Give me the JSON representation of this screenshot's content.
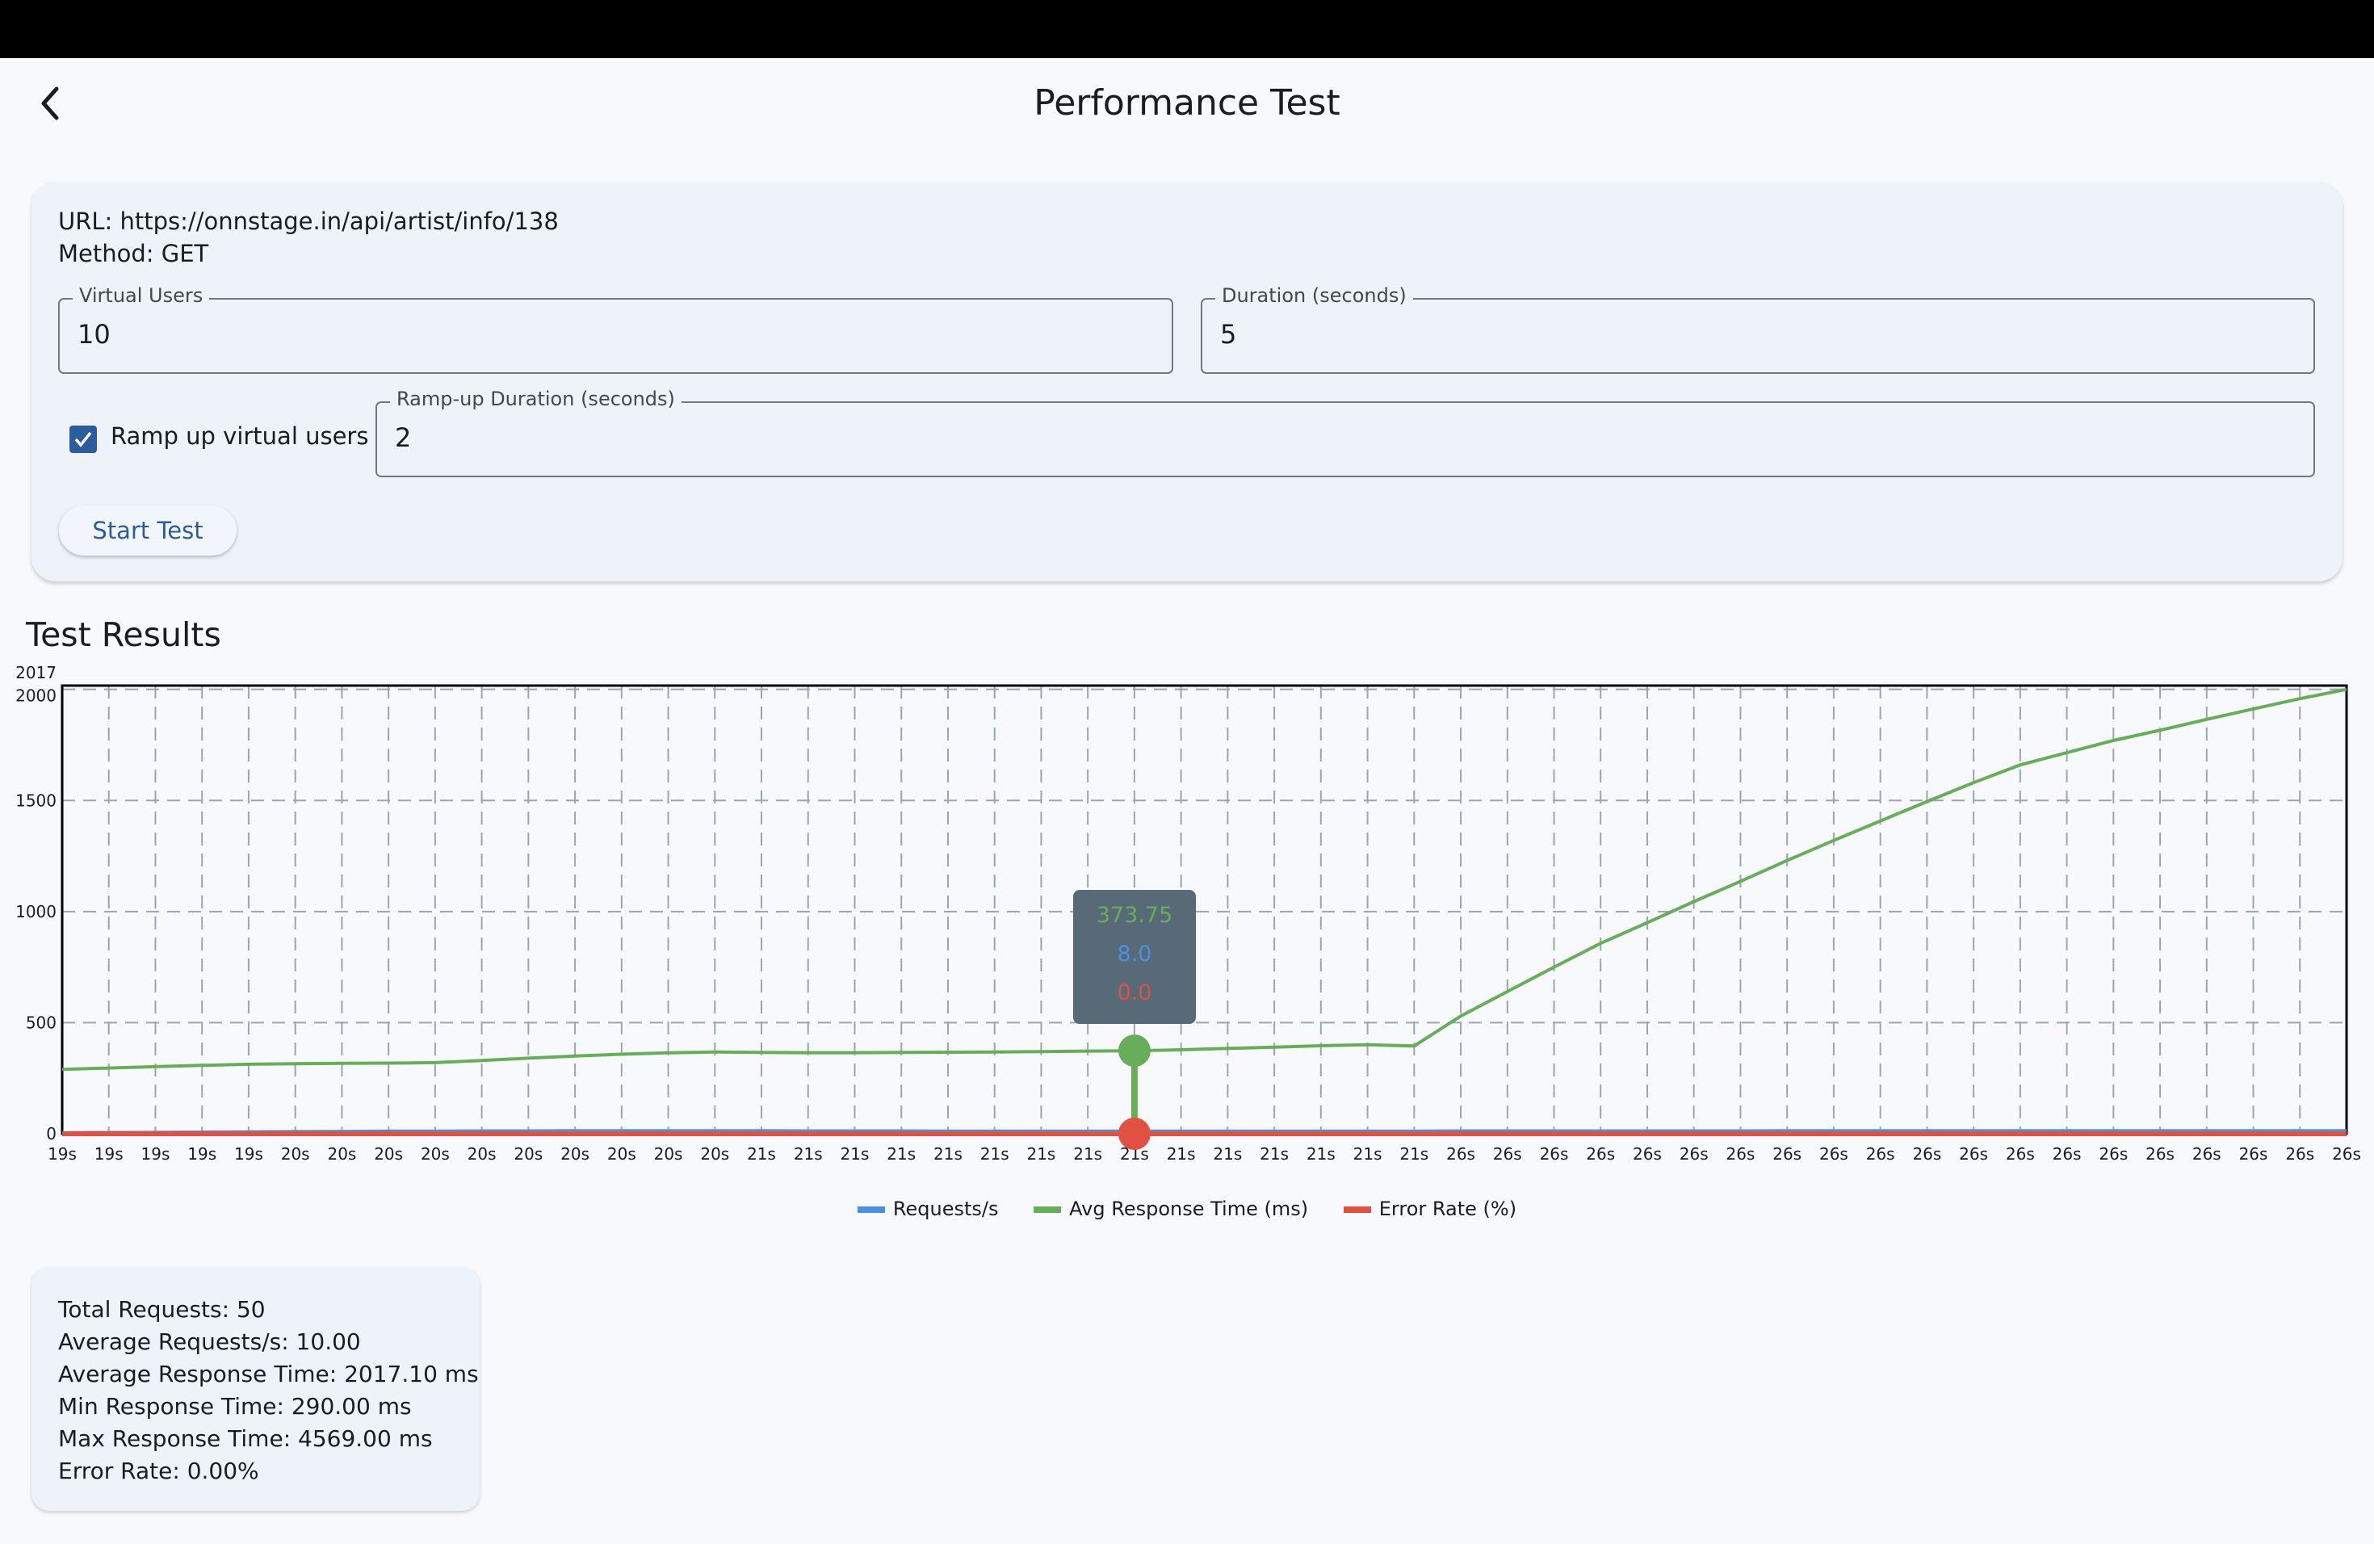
{
  "header": {
    "title": "Performance Test",
    "back_icon": "chevron-left-icon"
  },
  "config": {
    "url_line": "URL: https://onnstage.in/api/artist/info/138",
    "method_line": "Method: GET",
    "virtual_users": {
      "label": "Virtual Users",
      "value": "10"
    },
    "duration": {
      "label": "Duration (seconds)",
      "value": "5"
    },
    "ramp_up": {
      "checkbox_label": "Ramp up virtual users",
      "checked": true,
      "label": "Ramp-up Duration (seconds)",
      "value": "2"
    },
    "start_button": "Start Test"
  },
  "results_title": "Test Results",
  "chart_data": {
    "type": "line",
    "x": [
      "19s",
      "19s",
      "19s",
      "19s",
      "19s",
      "20s",
      "20s",
      "20s",
      "20s",
      "20s",
      "20s",
      "20s",
      "20s",
      "20s",
      "20s",
      "21s",
      "21s",
      "21s",
      "21s",
      "21s",
      "21s",
      "21s",
      "21s",
      "21s",
      "21s",
      "21s",
      "21s",
      "21s",
      "21s",
      "21s",
      "26s",
      "26s",
      "26s",
      "26s",
      "26s",
      "26s",
      "26s",
      "26s",
      "26s",
      "26s",
      "26s",
      "26s",
      "26s",
      "26s",
      "26s",
      "26s",
      "26s",
      "26s",
      "26s",
      "26s"
    ],
    "ylim": [
      0,
      2017
    ],
    "yticks": [
      "0",
      "500",
      "1000",
      "1500",
      "2000",
      "2017"
    ],
    "grid": true,
    "legend_position": "bottom",
    "series": [
      {
        "name": "Requests/s",
        "color": "#4a90e2",
        "values": [
          1,
          2,
          3,
          4,
          5,
          6,
          7,
          8,
          8,
          9,
          9,
          10,
          10,
          10,
          10,
          10,
          9,
          9,
          9,
          8,
          8,
          8,
          8,
          8,
          8,
          8,
          8,
          8,
          8,
          8,
          9,
          9,
          9,
          9,
          9,
          9,
          9,
          10,
          10,
          10,
          10,
          10,
          10,
          10,
          10,
          10,
          10,
          10,
          10,
          10
        ]
      },
      {
        "name": "Avg Response Time (ms)",
        "color": "#68ad5a",
        "values": [
          290,
          296,
          302,
          308,
          313,
          315,
          317,
          318,
          320,
          330,
          340,
          350,
          358,
          364,
          368,
          366,
          365,
          365,
          366,
          367,
          368,
          370,
          372,
          373.75,
          378,
          384,
          390,
          396,
          401,
          395,
          530,
          640,
          750,
          857,
          950,
          1045,
          1136,
          1230,
          1320,
          1408,
          1495,
          1580,
          1660,
          1715,
          1770,
          1816,
          1865,
          1912,
          1958,
          2000
        ]
      },
      {
        "name": "Error Rate (%)",
        "color": "#e05141",
        "values": [
          0,
          0,
          0,
          0,
          0,
          0,
          0,
          0,
          0,
          0,
          0,
          0,
          0,
          0,
          0,
          0,
          0,
          0,
          0,
          0,
          0,
          0,
          0,
          0,
          0,
          0,
          0,
          0,
          0,
          0,
          0,
          0,
          0,
          0,
          0,
          0,
          0,
          0,
          0,
          0,
          0,
          0,
          0,
          0,
          0,
          0,
          0,
          0,
          0,
          0
        ]
      }
    ],
    "tooltip": {
      "index": 23,
      "values": [
        "373.75",
        "8.0",
        "0.0"
      ]
    }
  },
  "stats": [
    "Total Requests: 50",
    "Average Requests/s: 10.00",
    "Average Response Time: 2017.10 ms",
    "Min Response Time: 290.00 ms",
    "Max Response Time: 4569.00 ms",
    "Error Rate: 0.00%"
  ]
}
